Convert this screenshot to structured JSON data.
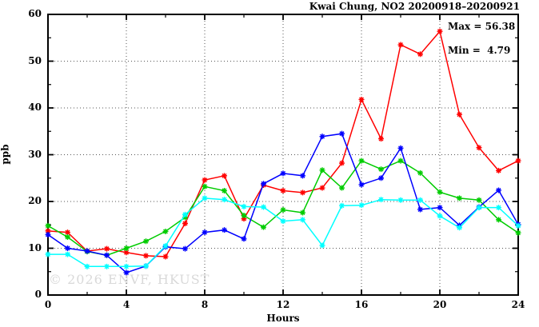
{
  "figure": {
    "title": "Kwai Chung, NO2 20200918–20200921",
    "stats": {
      "max_label": "Max = 56.38",
      "min_label": "Min =  4.79"
    },
    "watermark": "© 2026 ENVF, HKUST"
  },
  "chart_data": {
    "type": "line",
    "title": "Kwai Chung, NO2 20200918–20200921",
    "xlabel": "Hours",
    "ylabel": "ppb",
    "xlim": [
      0,
      24
    ],
    "ylim": [
      0,
      60
    ],
    "x_major_ticks": [
      0,
      4,
      8,
      12,
      16,
      20,
      24
    ],
    "x_minor_tick_step": 2,
    "y_major_ticks": [
      0,
      10,
      20,
      30,
      40,
      50,
      60
    ],
    "y_minor_tick_step": 5,
    "grid": "dotted-at-major-ticks",
    "legend": "none",
    "marker": "asterisk",
    "annotations": {
      "max": 56.38,
      "min": 4.79
    },
    "x": [
      0,
      1,
      2,
      3,
      4,
      5,
      6,
      7,
      8,
      9,
      10,
      11,
      12,
      13,
      14,
      15,
      16,
      17,
      18,
      19,
      20,
      21,
      22,
      23,
      24
    ],
    "series": [
      {
        "name": "red",
        "color": "#ff0000",
        "values": [
          13.7,
          13.4,
          9.4,
          9.9,
          9.1,
          8.4,
          8.2,
          15.3,
          24.6,
          25.5,
          16.3,
          23.5,
          22.3,
          21.9,
          22.9,
          28.2,
          41.8,
          33.4,
          53.5,
          51.5,
          56.38,
          38.6,
          31.5,
          26.6,
          28.7
        ]
      },
      {
        "name": "green",
        "color": "#00cc00",
        "values": [
          14.8,
          12.4,
          9.3,
          8.5,
          10.0,
          11.5,
          13.6,
          16.6,
          23.2,
          22.3,
          17.0,
          14.5,
          18.2,
          17.6,
          26.7,
          22.9,
          28.7,
          26.9,
          28.7,
          26.1,
          22.0,
          20.7,
          20.3,
          16.1,
          13.3
        ]
      },
      {
        "name": "blue",
        "color": "#0000ff",
        "values": [
          12.9,
          10.0,
          9.4,
          8.5,
          4.79,
          6.2,
          10.3,
          9.9,
          13.4,
          13.9,
          12.0,
          23.8,
          26.0,
          25.5,
          33.9,
          34.5,
          23.6,
          25.0,
          31.4,
          18.3,
          18.7,
          14.9,
          18.8,
          22.4,
          15.1
        ]
      },
      {
        "name": "cyan",
        "color": "#00ffff",
        "values": [
          8.7,
          8.7,
          6.1,
          6.1,
          6.1,
          6.2,
          10.5,
          17.2,
          20.7,
          20.4,
          18.9,
          18.8,
          15.8,
          16.1,
          10.6,
          19.1,
          19.2,
          20.4,
          20.3,
          20.3,
          16.9,
          14.4,
          18.7,
          18.7,
          14.8
        ]
      }
    ]
  }
}
